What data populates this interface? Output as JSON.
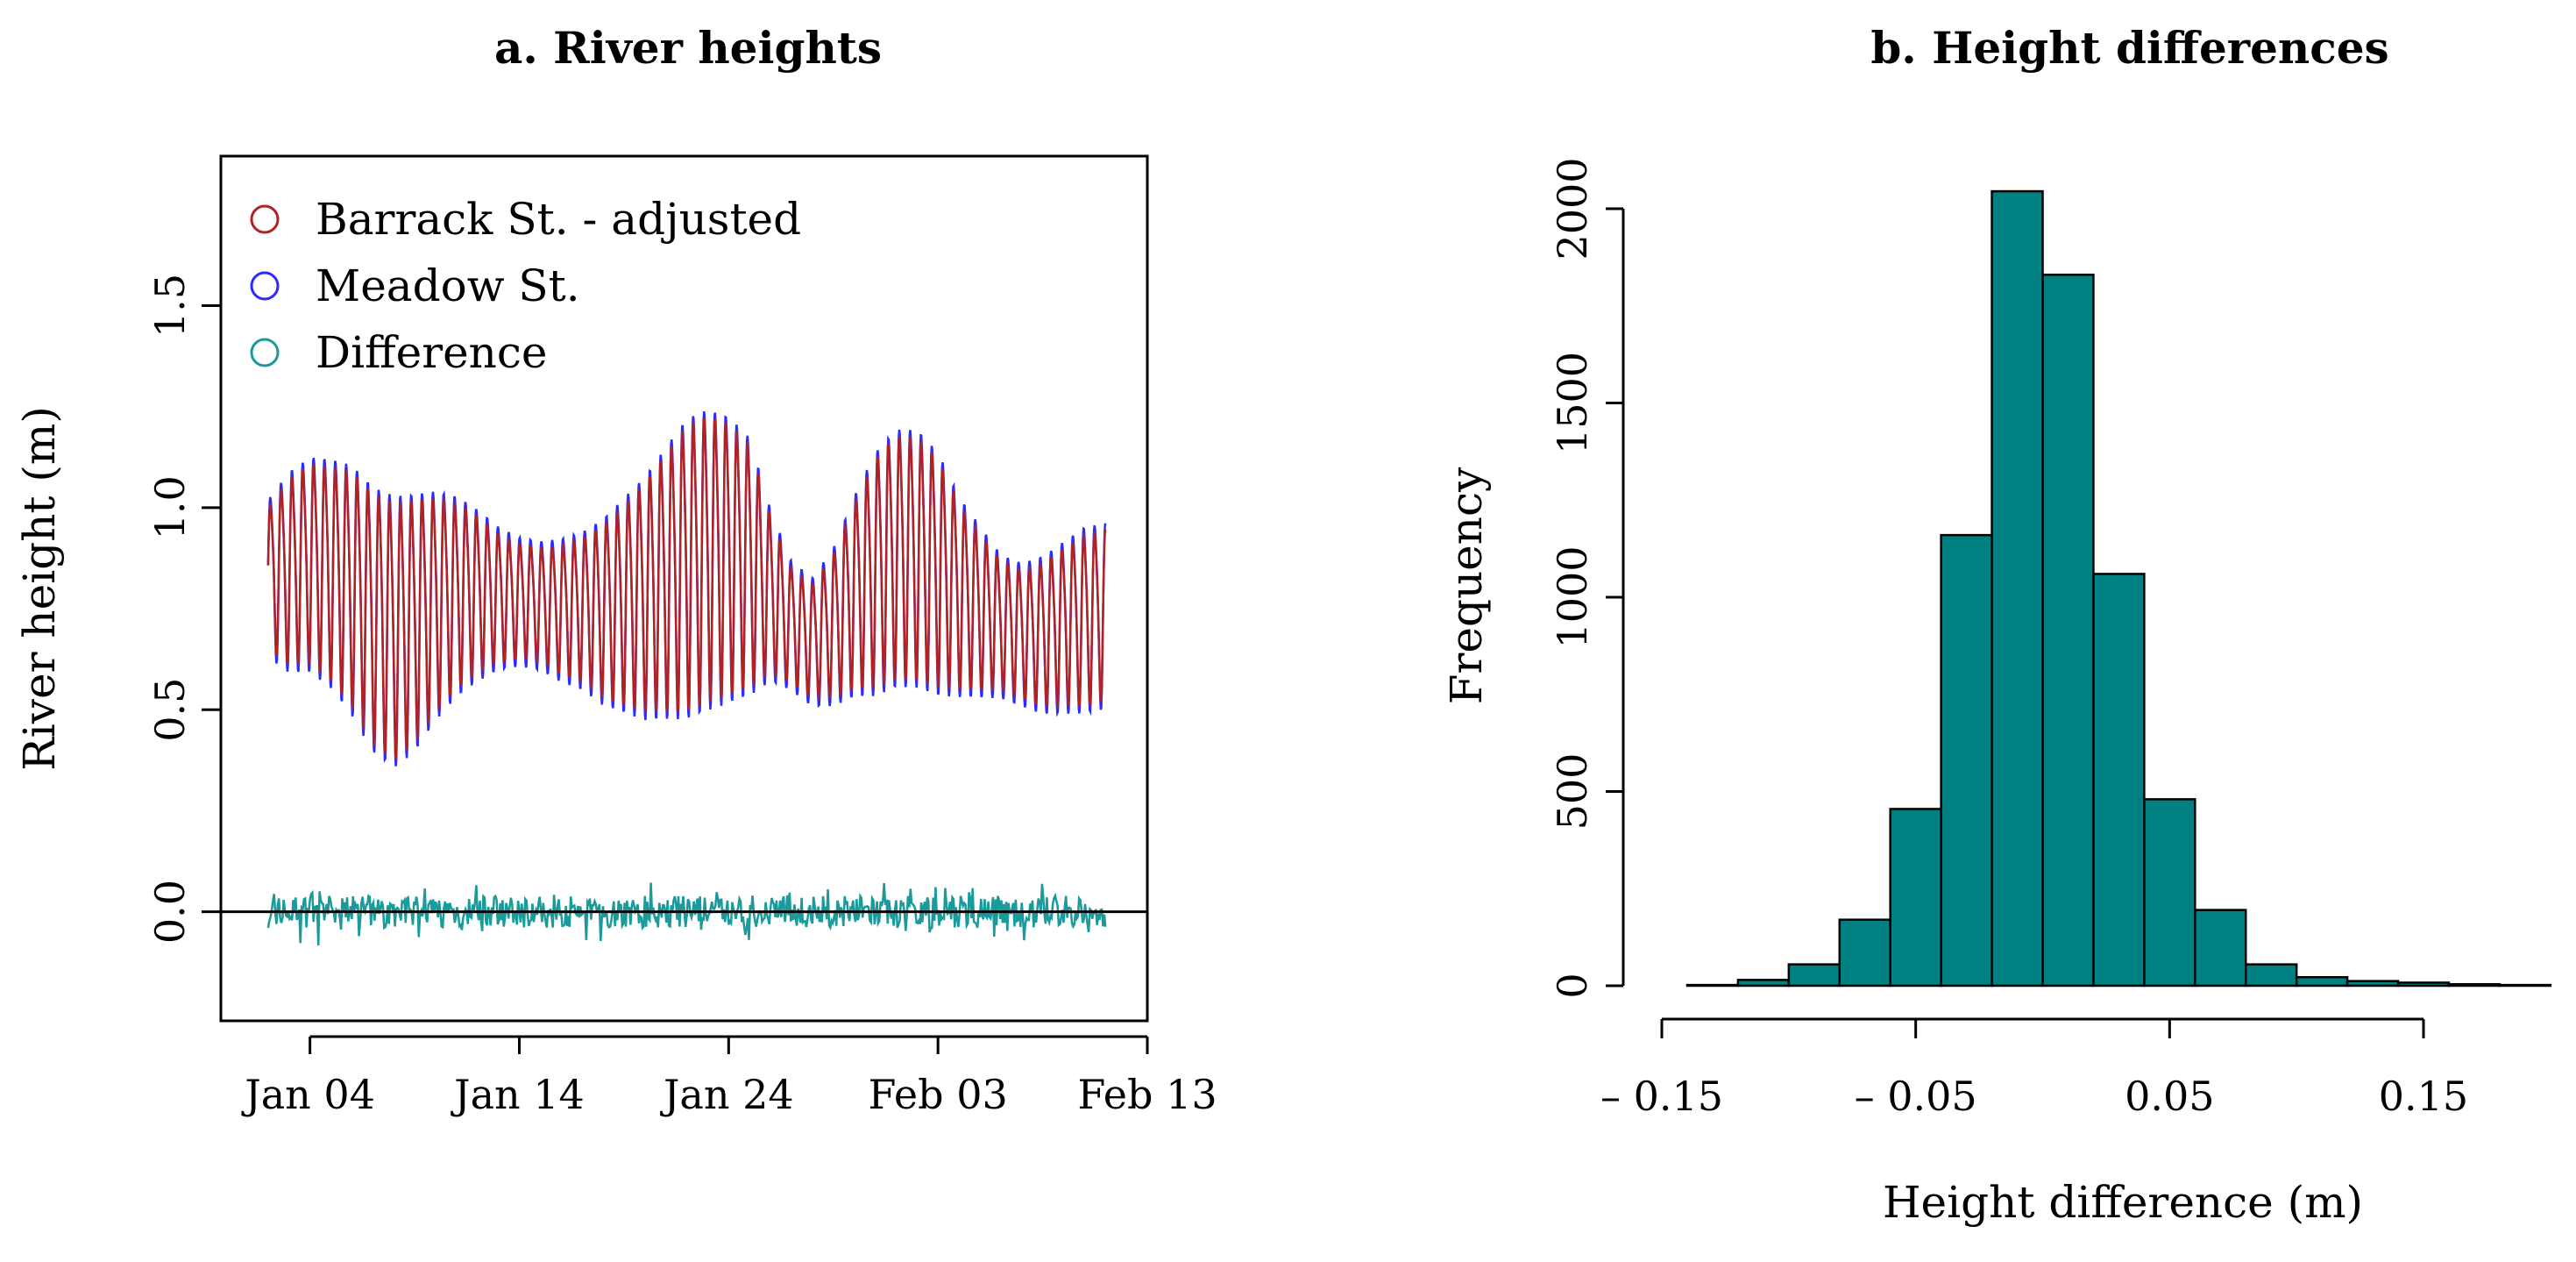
{
  "chart_data": [
    {
      "type": "line",
      "title": "a. River heights",
      "xlabel": "",
      "ylabel": "River height (m)",
      "x_type": "date",
      "xlim": [
        "2020-01-01",
        "2020-02-13"
      ],
      "ylim": [
        -0.27,
        1.87
      ],
      "x_ticks": [
        "Jan 04",
        "Jan 14",
        "Jan 24",
        "Feb 03",
        "Feb 13"
      ],
      "y_ticks": [
        "0.0",
        "0.5",
        "1.0",
        "1.5"
      ],
      "y_tick_values": [
        0,
        0.5,
        1.0,
        1.5
      ],
      "reference_line": 0,
      "legend": {
        "position": "top-left",
        "entries": [
          "Barrack St. - adjusted",
          "Meadow St.",
          "Difference"
        ]
      },
      "series": [
        {
          "name": "Barrack St. - adjusted",
          "color": "#b22222",
          "x_start": "2020-01-02",
          "x_end": "2020-02-11",
          "cycles_per_day": 1.93,
          "tidal_mean_per_day": [
            0.84,
            0.86,
            0.88,
            0.86,
            0.82,
            0.75,
            0.72,
            0.74,
            0.78,
            0.8,
            0.8,
            0.79,
            0.78,
            0.77,
            0.76,
            0.76,
            0.76,
            0.78,
            0.8,
            0.84,
            0.88,
            0.9,
            0.9,
            0.88,
            0.8,
            0.72,
            0.68,
            0.72,
            0.8,
            0.86,
            0.9,
            0.9,
            0.86,
            0.8,
            0.76,
            0.72,
            0.7,
            0.7,
            0.72,
            0.74,
            0.75
          ],
          "tidal_amplitude_per_day": [
            0.2,
            0.26,
            0.28,
            0.3,
            0.33,
            0.35,
            0.36,
            0.34,
            0.3,
            0.26,
            0.22,
            0.18,
            0.16,
            0.16,
            0.18,
            0.2,
            0.24,
            0.28,
            0.32,
            0.36,
            0.4,
            0.4,
            0.38,
            0.34,
            0.22,
            0.16,
            0.16,
            0.2,
            0.26,
            0.32,
            0.34,
            0.34,
            0.32,
            0.26,
            0.22,
            0.18,
            0.18,
            0.2,
            0.22,
            0.24,
            0.24
          ]
        },
        {
          "name": "Meadow St.",
          "color": "#2b2bff",
          "x_start": "2020-01-02",
          "x_end": "2020-02-11",
          "cycles_per_day": 1.93,
          "tidal_mean_per_day": [
            0.84,
            0.86,
            0.88,
            0.86,
            0.82,
            0.75,
            0.72,
            0.74,
            0.78,
            0.8,
            0.8,
            0.79,
            0.78,
            0.77,
            0.76,
            0.76,
            0.76,
            0.78,
            0.8,
            0.84,
            0.88,
            0.9,
            0.9,
            0.88,
            0.8,
            0.72,
            0.68,
            0.72,
            0.8,
            0.86,
            0.9,
            0.9,
            0.86,
            0.8,
            0.76,
            0.72,
            0.7,
            0.7,
            0.72,
            0.74,
            0.75
          ],
          "tidal_amplitude_per_day": [
            0.22,
            0.28,
            0.3,
            0.32,
            0.35,
            0.37,
            0.38,
            0.36,
            0.32,
            0.28,
            0.24,
            0.2,
            0.18,
            0.18,
            0.2,
            0.22,
            0.26,
            0.3,
            0.34,
            0.38,
            0.42,
            0.42,
            0.4,
            0.36,
            0.24,
            0.18,
            0.18,
            0.22,
            0.28,
            0.34,
            0.36,
            0.36,
            0.34,
            0.28,
            0.24,
            0.2,
            0.2,
            0.22,
            0.24,
            0.26,
            0.26
          ]
        },
        {
          "name": "Difference",
          "color": "#1a9a9a",
          "x_start": "2020-01-02",
          "x_end": "2020-02-11",
          "y_range": [
            -0.12,
            0.08
          ],
          "description_values": "fluctuates around 0, mostly between -0.10 and 0.07"
        }
      ]
    },
    {
      "type": "bar",
      "subtype": "histogram",
      "title": "b. Height differences",
      "xlabel": "Height difference (m)",
      "ylabel": "Frequency",
      "bar_color": "#008080",
      "xlim": [
        -0.14,
        0.19
      ],
      "ylim": [
        0,
        2000
      ],
      "x_ticks": [
        "– 0.15",
        "– 0.05",
        "0.05",
        "0.15"
      ],
      "x_tick_values": [
        -0.15,
        -0.05,
        0.05,
        0.15
      ],
      "y_ticks": [
        "0",
        "500",
        "1000",
        "1500",
        "2000"
      ],
      "y_tick_values": [
        0,
        500,
        1000,
        1500,
        2000
      ],
      "bins": [
        {
          "x0": -0.14,
          "x1": -0.12,
          "count": 2
        },
        {
          "x0": -0.12,
          "x1": -0.1,
          "count": 15
        },
        {
          "x0": -0.1,
          "x1": -0.08,
          "count": 55
        },
        {
          "x0": -0.08,
          "x1": -0.06,
          "count": 170
        },
        {
          "x0": -0.06,
          "x1": -0.04,
          "count": 455
        },
        {
          "x0": -0.04,
          "x1": -0.02,
          "count": 1160
        },
        {
          "x0": -0.02,
          "x1": 0.0,
          "count": 2045
        },
        {
          "x0": 0.0,
          "x1": 0.02,
          "count": 1830
        },
        {
          "x0": 0.02,
          "x1": 0.04,
          "count": 1060
        },
        {
          "x0": 0.04,
          "x1": 0.06,
          "count": 480
        },
        {
          "x0": 0.06,
          "x1": 0.08,
          "count": 195
        },
        {
          "x0": 0.08,
          "x1": 0.1,
          "count": 55
        },
        {
          "x0": 0.1,
          "x1": 0.12,
          "count": 22
        },
        {
          "x0": 0.12,
          "x1": 0.14,
          "count": 12
        },
        {
          "x0": 0.14,
          "x1": 0.16,
          "count": 8
        },
        {
          "x0": 0.16,
          "x1": 0.18,
          "count": 4
        },
        {
          "x0": 0.18,
          "x1": 0.2,
          "count": 2
        }
      ]
    }
  ]
}
